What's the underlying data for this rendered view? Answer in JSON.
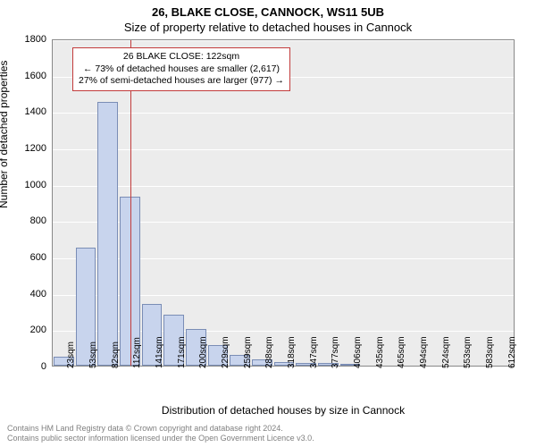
{
  "title": "26, BLAKE CLOSE, CANNOCK, WS11 5UB",
  "subtitle": "Size of property relative to detached houses in Cannock",
  "chart": {
    "type": "histogram",
    "background_color": "#ececec",
    "grid_color": "#ffffff",
    "bar_fill": "#c8d4ed",
    "bar_border": "#7a8db5",
    "ylabel": "Number of detached properties",
    "xlabel": "Distribution of detached houses by size in Cannock",
    "ylim": [
      0,
      1800
    ],
    "ytick_step": 200,
    "yticks": [
      0,
      200,
      400,
      600,
      800,
      1000,
      1200,
      1400,
      1600,
      1800
    ],
    "x_categories": [
      "23sqm",
      "53sqm",
      "82sqm",
      "112sqm",
      "141sqm",
      "171sqm",
      "200sqm",
      "229sqm",
      "259sqm",
      "288sqm",
      "318sqm",
      "347sqm",
      "377sqm",
      "406sqm",
      "435sqm",
      "465sqm",
      "494sqm",
      "524sqm",
      "553sqm",
      "583sqm",
      "612sqm"
    ],
    "values": [
      50,
      650,
      1450,
      930,
      340,
      280,
      200,
      115,
      60,
      35,
      20,
      15,
      15,
      10,
      0,
      0,
      0,
      0,
      0,
      0,
      0
    ],
    "marker": {
      "position_sqm": 122,
      "color": "#c23b3b"
    },
    "annotation": {
      "lines": [
        "26 BLAKE CLOSE: 122sqm",
        "← 73% of detached houses are smaller (2,617)",
        "27% of semi-detached houses are larger (977) →"
      ],
      "border_color": "#c23b3b",
      "background": "#ffffff",
      "fontsize": 10.5
    }
  },
  "footer": {
    "line1": "Contains HM Land Registry data © Crown copyright and database right 2024.",
    "line2": "Contains public sector information licensed under the Open Government Licence v3.0."
  }
}
